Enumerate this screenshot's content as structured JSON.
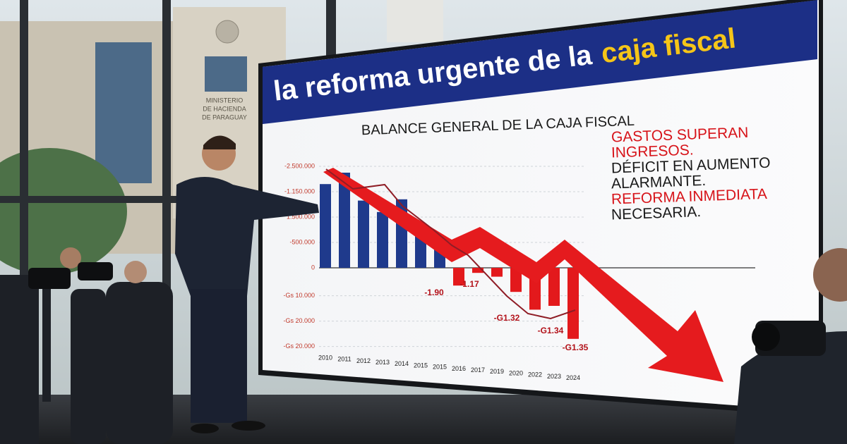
{
  "building": {
    "sign": [
      "MINISTERIO",
      "DE HACIENDA",
      "DE PARAGUAY"
    ]
  },
  "screen": {
    "headline": {
      "main": "la reforma urgente de la",
      "highlight": "caja fiscal"
    },
    "callout": [
      {
        "text": "GASTOS SUPERAN",
        "color": "#d7141a"
      },
      {
        "text": "INGRESOS.",
        "color": "#d7141a"
      },
      {
        "text": "DÉFICIT EN AUMENTO",
        "color": "#1a1a1a"
      },
      {
        "text": "ALARMANTE.",
        "color": "#1a1a1a"
      },
      {
        "text": "REFORMA INMEDIATA",
        "color": "#d7141a"
      },
      {
        "text": "NECESARIA.",
        "color": "#1a1a1a"
      }
    ]
  },
  "chart_data": {
    "type": "bar",
    "title": "BALANCE GENERAL DE LA CAJA FISCAL",
    "categories": [
      "2010",
      "2011",
      "2012",
      "2013",
      "2014",
      "2015",
      "2015",
      "2016",
      "2017",
      "2019",
      "2020",
      "2022",
      "2023",
      "2024"
    ],
    "values": [
      3.3,
      3.75,
      2.65,
      2.2,
      2.7,
      1.4,
      1.0,
      -0.7,
      -0.2,
      -0.35,
      -0.95,
      -1.65,
      -1.5,
      -2.8
    ],
    "color": "#1f3a8c",
    "negative_color": "#e3191c",
    "ylim": [
      -3.3,
      4.2
    ],
    "yticks": [
      {
        "value": 4,
        "label": "-2.500.000"
      },
      {
        "value": 3,
        "label": "-1.150.000"
      },
      {
        "value": 2,
        "label": "1.500.000"
      },
      {
        "value": 1,
        "label": "-500.000"
      },
      0,
      {
        "value": -1.1,
        "label": "-Gs 10.000"
      },
      {
        "value": -2.1,
        "label": "-Gs 20.000"
      },
      {
        "value": -3.1,
        "label": "-Gs 20.000"
      }
    ],
    "grid": true,
    "annotations": [
      "-1.90",
      "-1.17",
      "-G1.32",
      "-G1.34",
      "-G1.35"
    ]
  }
}
